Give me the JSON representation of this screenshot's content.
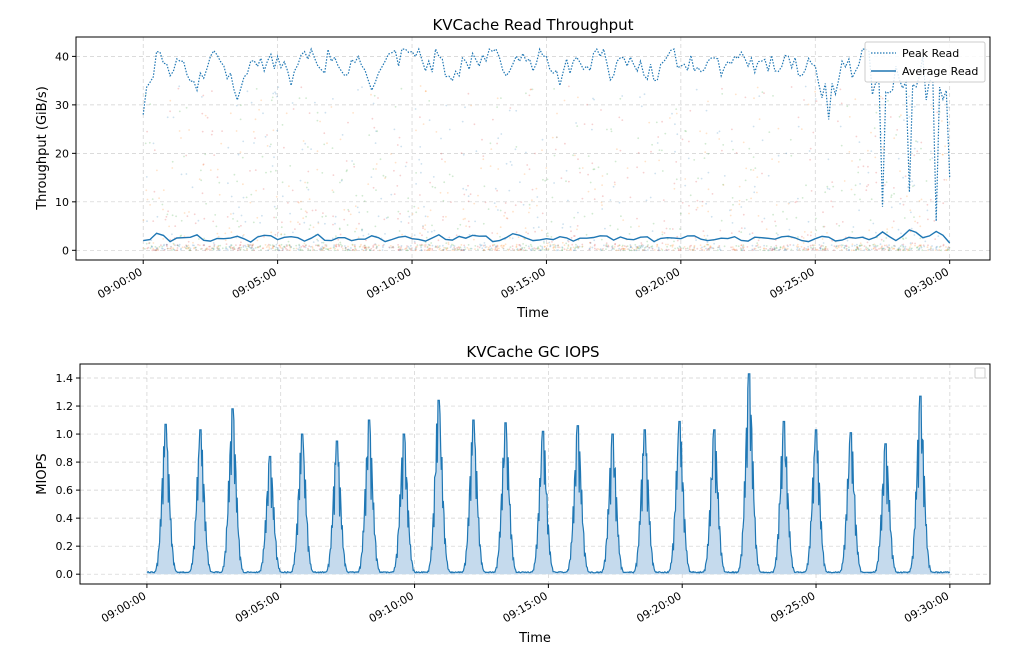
{
  "chart_data": [
    {
      "type": "line",
      "title": "KVCache Read Throughput",
      "xlabel": "Time",
      "ylabel": "Throughput (GiB/s)",
      "x_ticks": [
        "09:00:00",
        "09:05:00",
        "09:10:00",
        "09:15:00",
        "09:20:00",
        "09:25:00",
        "09:30:00"
      ],
      "y_ticks": [
        "0",
        "10",
        "20",
        "30",
        "40"
      ],
      "xlim_minutes": [
        -2.5,
        31.5
      ],
      "ylim": [
        -2,
        44
      ],
      "grid": true,
      "legend": {
        "placement": "top-right",
        "entries": [
          "Peak Read",
          "Average Read"
        ]
      },
      "colors": {
        "peak": "#1f77b4",
        "average": "#1f77b4",
        "scatter_a": "#1f77b4",
        "scatter_b": "#ff7f0e",
        "scatter_c": "#2ca02c",
        "scatter_d": "#d62728"
      },
      "series": [
        {
          "name": "Peak Read",
          "style": "dotted",
          "x_minutes": [
            0,
            0.5,
            1,
            1.5,
            2,
            2.5,
            3,
            3.5,
            4,
            4.5,
            5,
            5.5,
            6,
            6.5,
            7,
            7.5,
            8,
            8.5,
            9,
            9.5,
            10,
            10.5,
            11,
            11.5,
            12,
            12.5,
            13,
            13.5,
            14,
            14.5,
            15,
            15.5,
            16,
            16.5,
            17,
            17.5,
            18,
            18.5,
            19,
            19.5,
            20,
            20.5,
            21,
            21.5,
            22,
            22.5,
            23,
            23.5,
            24,
            24.5,
            25,
            25.5,
            26,
            26.5,
            27,
            27.5,
            28,
            28.5,
            29,
            29.5,
            30
          ],
          "values": [
            28,
            41,
            36,
            39,
            33,
            40,
            38,
            31,
            39,
            37,
            40,
            34,
            41,
            38,
            39,
            36,
            40,
            33,
            39,
            38,
            41,
            37,
            40,
            35,
            39,
            38,
            41,
            36,
            39,
            37,
            40,
            34,
            39,
            38,
            40,
            36,
            38,
            39,
            35,
            40,
            38,
            37,
            39,
            36,
            40,
            38,
            39,
            37,
            40,
            36,
            38,
            27,
            39,
            37,
            41,
            9,
            38,
            12,
            40,
            6,
            15
          ]
        },
        {
          "name": "Average Read",
          "style": "solid",
          "x_minutes": [
            0,
            0.5,
            1,
            1.5,
            2,
            2.5,
            3,
            3.5,
            4,
            4.5,
            5,
            5.5,
            6,
            6.5,
            7,
            7.5,
            8,
            8.5,
            9,
            9.5,
            10,
            10.5,
            11,
            11.5,
            12,
            12.5,
            13,
            13.5,
            14,
            14.5,
            15,
            15.5,
            16,
            16.5,
            17,
            17.5,
            18,
            18.5,
            19,
            19.5,
            20,
            20.5,
            21,
            21.5,
            22,
            22.5,
            23,
            23.5,
            24,
            24.5,
            25,
            25.5,
            26,
            26.5,
            27,
            27.5,
            28,
            28.5,
            29,
            29.5,
            30
          ],
          "values": [
            2.0,
            3.5,
            1.8,
            2.6,
            3.2,
            1.9,
            2.4,
            2.9,
            1.7,
            3.1,
            2.2,
            2.8,
            1.9,
            3.3,
            2.0,
            2.6,
            2.3,
            3.0,
            1.8,
            2.7,
            2.4,
            1.9,
            3.2,
            2.1,
            2.5,
            2.9,
            1.8,
            2.6,
            3.1,
            2.0,
            2.4,
            2.8,
            1.9,
            2.5,
            3.0,
            2.1,
            2.3,
            2.7,
            1.8,
            2.6,
            2.4,
            3.0,
            2.0,
            2.5,
            2.8,
            1.9,
            2.6,
            2.3,
            2.9,
            2.0,
            2.4,
            2.7,
            2.1,
            2.5,
            2.2,
            3.8,
            2.0,
            4.2,
            2.6,
            3.9,
            1.5
          ]
        }
      ]
    },
    {
      "type": "area",
      "title": "KVCache GC IOPS",
      "xlabel": "Time",
      "ylabel": "MIOPS",
      "x_ticks": [
        "09:00:00",
        "09:05:00",
        "09:10:00",
        "09:15:00",
        "09:20:00",
        "09:25:00",
        "09:30:00"
      ],
      "y_ticks": [
        "0.0",
        "0.2",
        "0.4",
        "0.6",
        "0.8",
        "1.0",
        "1.2",
        "1.4"
      ],
      "xlim_minutes": [
        -2.5,
        31.5
      ],
      "ylim": [
        -0.07,
        1.5
      ],
      "grid": true,
      "legend": {
        "placement": "top-right",
        "entries": []
      },
      "colors": {
        "line": "#1f77b4",
        "fill": "#c5daed"
      },
      "series": [
        {
          "name": "",
          "style": "filled-line",
          "burst_centers_minutes": [
            0.7,
            2.0,
            3.2,
            4.6,
            5.8,
            7.1,
            8.3,
            9.6,
            10.9,
            12.2,
            13.4,
            14.8,
            16.1,
            17.4,
            18.6,
            19.9,
            21.2,
            22.5,
            23.8,
            25.0,
            26.3,
            27.6,
            28.9
          ],
          "burst_peaks": [
            1.07,
            1.03,
            1.18,
            0.84,
            1.0,
            0.95,
            1.1,
            1.0,
            1.24,
            1.1,
            1.08,
            1.02,
            1.06,
            1.0,
            1.03,
            1.09,
            1.03,
            1.43,
            1.09,
            1.03,
            1.01,
            0.93,
            1.27
          ],
          "baseline": 0.01
        }
      ]
    }
  ]
}
